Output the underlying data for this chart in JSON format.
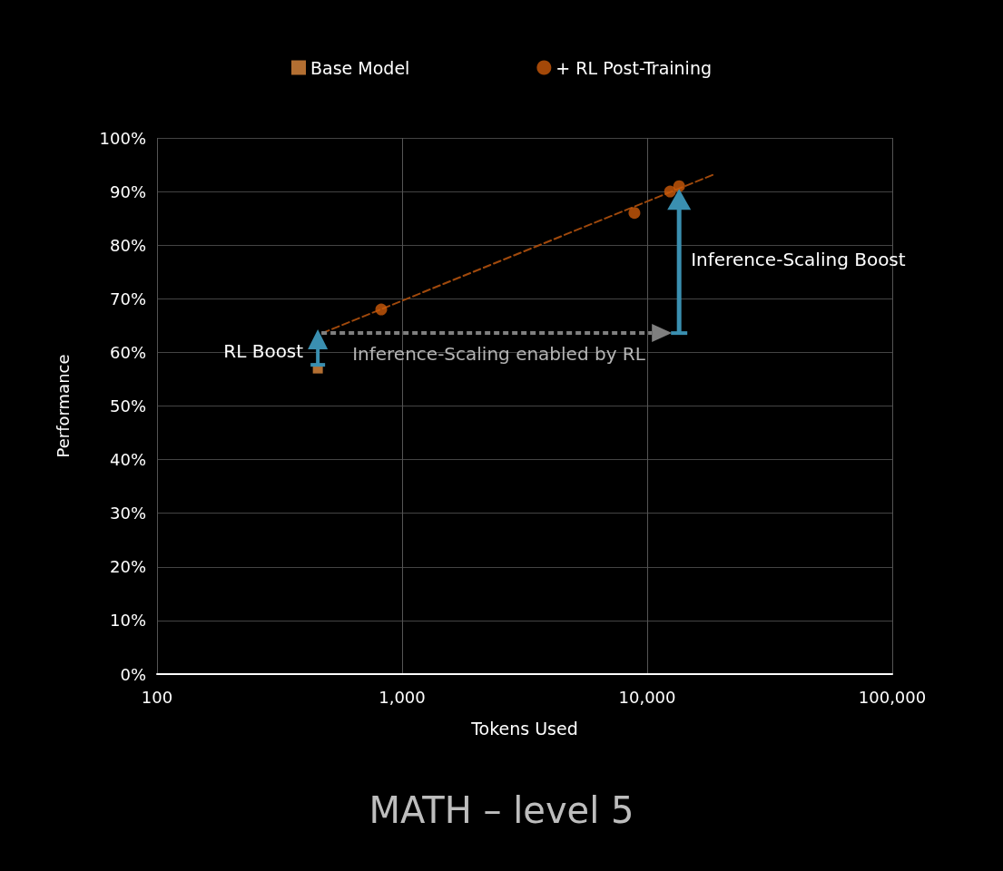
{
  "chart_data": {
    "type": "scatter",
    "title": "MATH – level 5",
    "xlabel": "Tokens Used",
    "ylabel": "Performance",
    "log": "x",
    "xlim": [
      100,
      100000
    ],
    "xticks": [
      100,
      {
        "value": 1000,
        "label": "1,000"
      },
      {
        "value": 10000,
        "label": "10,000"
      },
      {
        "value": 100000,
        "label": "100,000"
      }
    ],
    "ylim": [
      0,
      100
    ],
    "yticks": [
      {
        "value": 0,
        "label": "0%"
      },
      {
        "value": 10,
        "label": "10%"
      },
      {
        "value": 20,
        "label": "20%"
      },
      {
        "value": 30,
        "label": "30%"
      },
      {
        "value": 40,
        "label": "40%"
      },
      {
        "value": 50,
        "label": "50%"
      },
      {
        "value": 60,
        "label": "60%"
      },
      {
        "value": 70,
        "label": "70%"
      },
      {
        "value": 80,
        "label": "80%"
      },
      {
        "value": 90,
        "label": "90%"
      },
      {
        "value": 100,
        "label": "100%"
      }
    ],
    "grid": true,
    "legend": "top",
    "series": [
      {
        "name": "Base Model",
        "color": "#e08b3e",
        "marker": "square",
        "x": [
          453
        ],
        "values": [
          57
        ]
      },
      {
        "name": "+ RL Post-Training",
        "color": "#cc5a0a",
        "marker": "circle",
        "x": [
          822,
          8870,
          12400,
          13500
        ],
        "values": [
          68,
          86,
          90,
          91
        ]
      },
      {
        "type": "line",
        "color": "#a0490c",
        "line_style": "dashed",
        "marker": "none",
        "x": [
          472,
          18500
        ],
        "values": [
          63.6,
          93.1
        ]
      }
    ],
    "annotations": [
      "RL Boost",
      "Inference-Scaling enabled by RL",
      "Inference-Scaling Boost"
    ]
  }
}
